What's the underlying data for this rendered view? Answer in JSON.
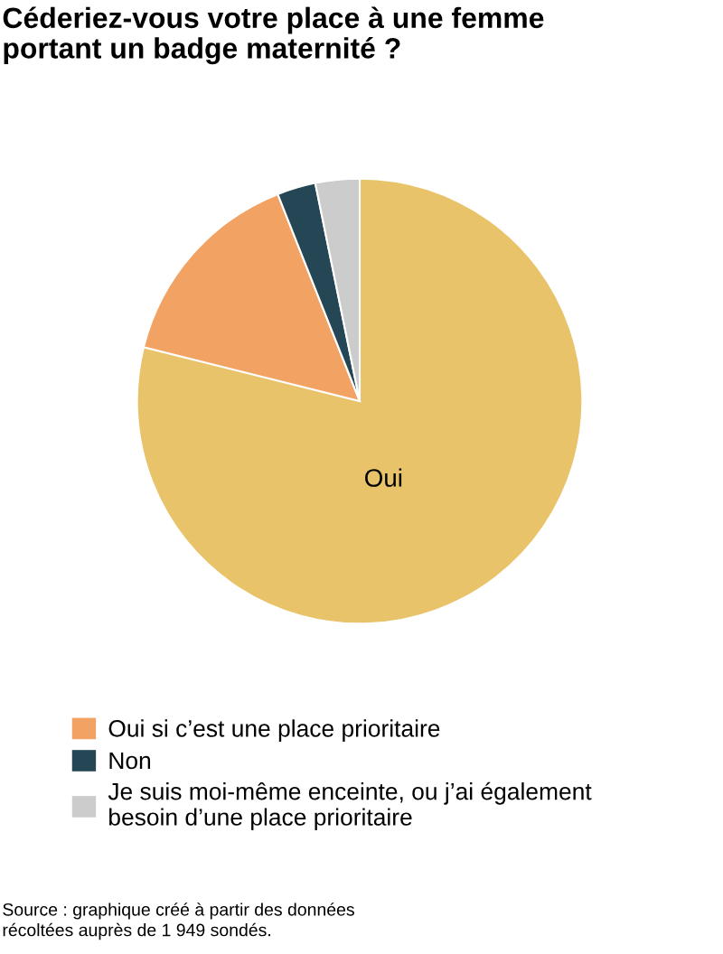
{
  "chart_data": {
    "type": "pie",
    "title": "Céderiez-vous votre place à une femme\nportant un badge maternité ?",
    "categories": [
      "Oui",
      "Oui si c’est une place prioritaire",
      "Non",
      "Je suis moi-même enceinte, ou j’ai également\nbesoin d’une place prioritaire"
    ],
    "values": [
      78.9,
      15.1,
      2.8,
      3.2
    ],
    "colors": [
      "#e8c36a",
      "#f2a262",
      "#254655",
      "#cccccc"
    ],
    "legend": "bottom",
    "annotations": [
      "Source : graphique créé à partir des données\nrécoltées auprès de 1 949 sondés."
    ]
  }
}
